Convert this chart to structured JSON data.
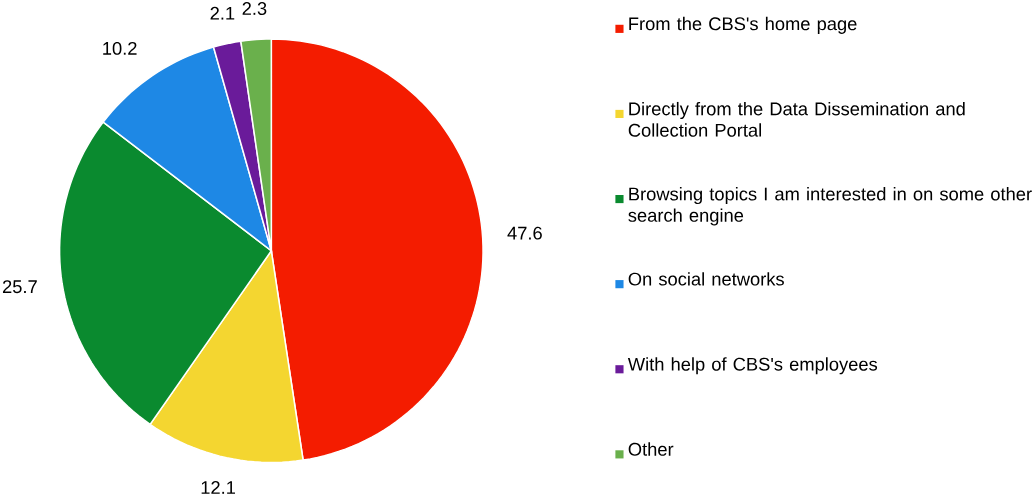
{
  "chart_data": {
    "type": "pie",
    "categories": [
      "From the CBS's home page",
      "Directly from the Data Dissemination and Collection Portal",
      "Browsing topics I am interested in on some other search engine",
      "On social networks",
      "With help of CBS's employees",
      "Other"
    ],
    "values": [
      47.6,
      12.1,
      25.7,
      10.2,
      2.1,
      2.3
    ],
    "colors": [
      "#f41c00",
      "#f4d630",
      "#0a8a2f",
      "#1e88e5",
      "#6a1b9a",
      "#6ab04c"
    ],
    "data_labels": true,
    "legend": "right"
  }
}
